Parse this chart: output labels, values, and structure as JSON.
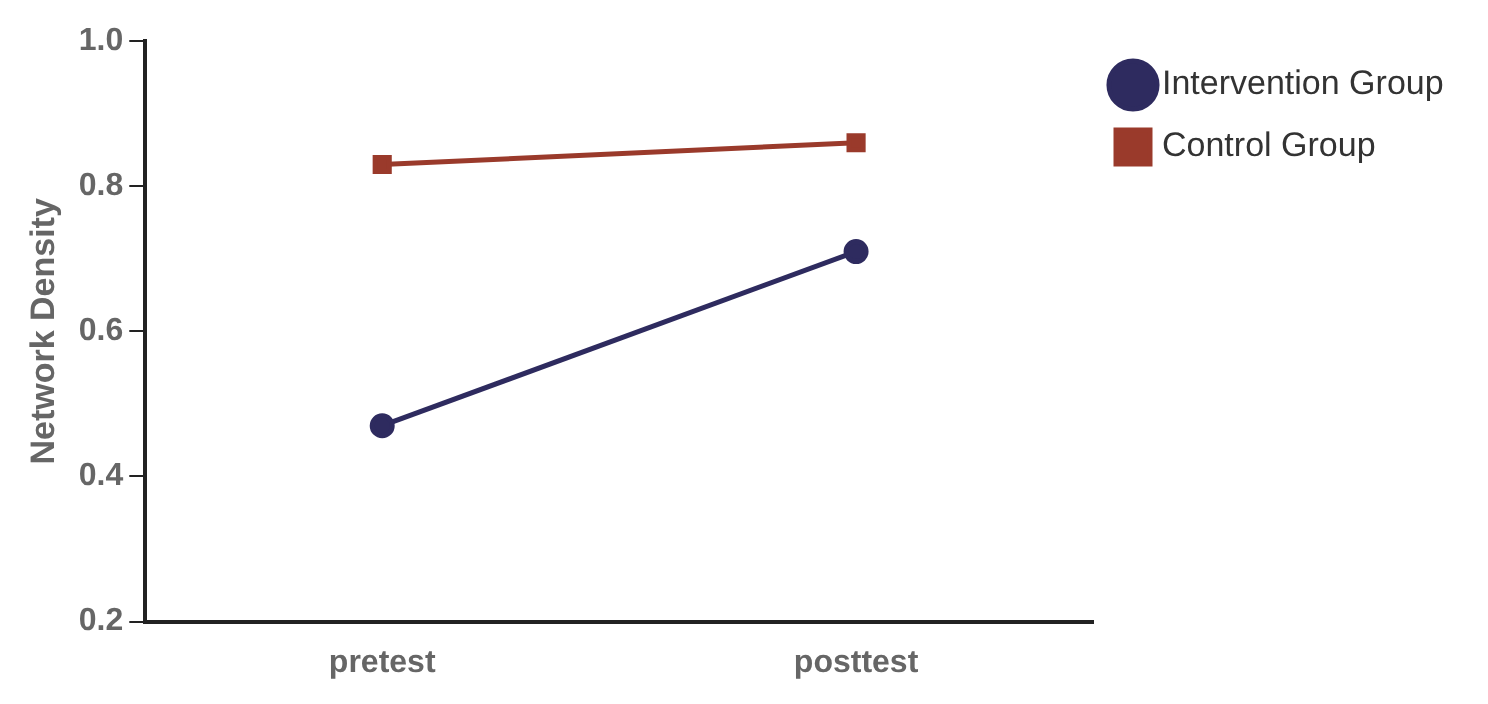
{
  "chart_data": {
    "type": "line",
    "ylabel": "Network Density",
    "categories": [
      "pretest",
      "posttest"
    ],
    "series": [
      {
        "name": "Intervention Group",
        "color": "#2e2b5f",
        "values": [
          0.47,
          0.71
        ],
        "marker": "circle"
      },
      {
        "name": "Control Group",
        "color": "#9a3a2b",
        "values": [
          0.83,
          0.86
        ],
        "marker": "square"
      }
    ],
    "ylim": [
      0.2,
      1.0
    ],
    "yticks": [
      0.2,
      0.4,
      0.6,
      0.8,
      {
        "value": 1,
        "label": "1.0"
      }
    ],
    "grid": false,
    "legend": "top right",
    "line_style": "solid"
  }
}
